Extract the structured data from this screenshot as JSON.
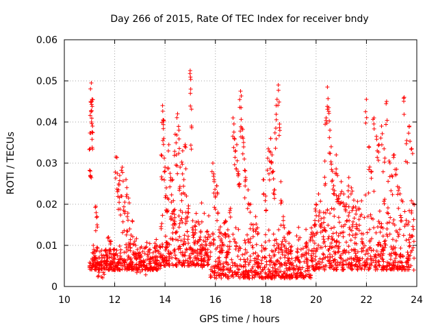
{
  "chart_data": {
    "type": "scatter",
    "title": "Day 266 of 2015, Rate Of TEC Index for receiver bndy",
    "xlabel": "GPS time / hours",
    "ylabel": "ROTI / TECUs",
    "xlim": [
      10,
      24
    ],
    "ylim": [
      0,
      0.06
    ],
    "x_ticks": [
      "10",
      "12",
      "14",
      "16",
      "18",
      "20",
      "22",
      "24"
    ],
    "y_ticks": [
      "0",
      "0.01",
      "0.02",
      "0.03",
      "0.04",
      "0.05",
      "0.06"
    ],
    "grid": true,
    "marker": "+",
    "color": "#ff0000",
    "series": [
      {
        "name": "ROTI",
        "points": [
          [
            11.02,
            0.0335
          ],
          [
            11.03,
            0.027
          ],
          [
            11.05,
            0.045
          ],
          [
            11.06,
            0.0425
          ],
          [
            11.07,
            0.0495
          ],
          [
            11.08,
            0.04
          ],
          [
            11.1,
            0.0455
          ],
          [
            11.12,
            0.039
          ],
          [
            11.15,
            0.01
          ],
          [
            11.2,
            0.0085
          ],
          [
            11.25,
            0.0195
          ],
          [
            11.3,
            0.017
          ],
          [
            11.35,
            0.007
          ],
          [
            11.45,
            0.006
          ],
          [
            11.55,
            0.0075
          ],
          [
            11.65,
            0.009
          ],
          [
            11.75,
            0.012
          ],
          [
            11.85,
            0.011
          ],
          [
            11.95,
            0.009
          ],
          [
            12.05,
            0.0315
          ],
          [
            12.1,
            0.0275
          ],
          [
            12.15,
            0.0235
          ],
          [
            12.2,
            0.027
          ],
          [
            12.25,
            0.022
          ],
          [
            12.3,
            0.029
          ],
          [
            12.35,
            0.0185
          ],
          [
            12.4,
            0.0205
          ],
          [
            12.45,
            0.026
          ],
          [
            12.5,
            0.017
          ],
          [
            12.55,
            0.0215
          ],
          [
            12.6,
            0.014
          ],
          [
            12.65,
            0.0125
          ],
          [
            12.7,
            0.016
          ],
          [
            12.8,
            0.011
          ],
          [
            12.9,
            0.009
          ],
          [
            13.0,
            0.007
          ],
          [
            13.2,
            0.008
          ],
          [
            13.4,
            0.009
          ],
          [
            13.6,
            0.0105
          ],
          [
            13.8,
            0.0095
          ],
          [
            13.85,
            0.032
          ],
          [
            13.9,
            0.044
          ],
          [
            13.92,
            0.0405
          ],
          [
            13.95,
            0.036
          ],
          [
            14.0,
            0.029
          ],
          [
            14.05,
            0.024
          ],
          [
            14.1,
            0.0215
          ],
          [
            14.15,
            0.0345
          ],
          [
            14.2,
            0.0275
          ],
          [
            14.25,
            0.0205
          ],
          [
            14.3,
            0.026
          ],
          [
            14.35,
            0.0185
          ],
          [
            14.4,
            0.037
          ],
          [
            14.45,
            0.032
          ],
          [
            14.5,
            0.042
          ],
          [
            14.55,
            0.038
          ],
          [
            14.6,
            0.029
          ],
          [
            14.65,
            0.0225
          ],
          [
            14.7,
            0.033
          ],
          [
            14.75,
            0.026
          ],
          [
            14.8,
            0.0345
          ],
          [
            14.85,
            0.022
          ],
          [
            14.9,
            0.018
          ],
          [
            15.0,
            0.0525
          ],
          [
            15.02,
            0.048
          ],
          [
            15.05,
            0.039
          ],
          [
            15.1,
            0.016
          ],
          [
            15.2,
            0.013
          ],
          [
            15.3,
            0.011
          ],
          [
            15.4,
            0.012
          ],
          [
            15.5,
            0.0095
          ],
          [
            15.6,
            0.012
          ],
          [
            15.7,
            0.009
          ],
          [
            15.9,
            0.03
          ],
          [
            15.95,
            0.026
          ],
          [
            16.0,
            0.022
          ],
          [
            16.05,
            0.0245
          ],
          [
            16.1,
            0.018
          ],
          [
            16.2,
            0.0145
          ],
          [
            16.3,
            0.0125
          ],
          [
            16.4,
            0.016
          ],
          [
            16.5,
            0.0125
          ],
          [
            16.6,
            0.019
          ],
          [
            16.7,
            0.041
          ],
          [
            16.75,
            0.036
          ],
          [
            16.8,
            0.033
          ],
          [
            16.85,
            0.0345
          ],
          [
            16.9,
            0.028
          ],
          [
            16.95,
            0.025
          ],
          [
            17.0,
            0.0475
          ],
          [
            17.02,
            0.0435
          ],
          [
            17.05,
            0.0385
          ],
          [
            17.1,
            0.036
          ],
          [
            17.15,
            0.031
          ],
          [
            17.2,
            0.0265
          ],
          [
            17.3,
            0.0235
          ],
          [
            17.4,
            0.02
          ],
          [
            17.5,
            0.015
          ],
          [
            17.6,
            0.017
          ],
          [
            17.7,
            0.013
          ],
          [
            17.9,
            0.026
          ],
          [
            18.0,
            0.022
          ],
          [
            18.1,
            0.0335
          ],
          [
            18.15,
            0.0305
          ],
          [
            18.2,
            0.036
          ],
          [
            18.25,
            0.032
          ],
          [
            18.3,
            0.028
          ],
          [
            18.35,
            0.0235
          ],
          [
            18.4,
            0.0385
          ],
          [
            18.45,
            0.0455
          ],
          [
            18.5,
            0.049
          ],
          [
            18.55,
            0.0395
          ],
          [
            18.6,
            0.0255
          ],
          [
            18.7,
            0.017
          ],
          [
            18.8,
            0.011
          ],
          [
            18.9,
            0.009
          ],
          [
            19.0,
            0.008
          ],
          [
            19.2,
            0.007
          ],
          [
            19.4,
            0.009
          ],
          [
            19.6,
            0.0105
          ],
          [
            19.8,
            0.012
          ],
          [
            20.0,
            0.02
          ],
          [
            20.1,
            0.0225
          ],
          [
            20.2,
            0.0165
          ],
          [
            20.3,
            0.018
          ],
          [
            20.35,
            0.0305
          ],
          [
            20.4,
            0.041
          ],
          [
            20.45,
            0.0485
          ],
          [
            20.5,
            0.0435
          ],
          [
            20.55,
            0.038
          ],
          [
            20.6,
            0.034
          ],
          [
            20.65,
            0.028
          ],
          [
            20.7,
            0.0245
          ],
          [
            20.8,
            0.032
          ],
          [
            20.85,
            0.027
          ],
          [
            20.9,
            0.022
          ],
          [
            21.0,
            0.0255
          ],
          [
            21.1,
            0.0225
          ],
          [
            21.2,
            0.02
          ],
          [
            21.3,
            0.0265
          ],
          [
            21.4,
            0.024
          ],
          [
            21.5,
            0.021
          ],
          [
            21.6,
            0.0185
          ],
          [
            21.7,
            0.019
          ],
          [
            21.8,
            0.0175
          ],
          [
            22.0,
            0.0455
          ],
          [
            22.1,
            0.034
          ],
          [
            22.2,
            0.028
          ],
          [
            22.3,
            0.041
          ],
          [
            22.4,
            0.0365
          ],
          [
            22.5,
            0.0345
          ],
          [
            22.6,
            0.039
          ],
          [
            22.7,
            0.0335
          ],
          [
            22.8,
            0.045
          ],
          [
            22.9,
            0.0305
          ],
          [
            23.0,
            0.027
          ],
          [
            23.1,
            0.032
          ],
          [
            23.2,
            0.0285
          ],
          [
            23.3,
            0.024
          ],
          [
            23.4,
            0.021
          ],
          [
            23.5,
            0.046
          ],
          [
            23.6,
            0.0355
          ],
          [
            23.7,
            0.039
          ],
          [
            23.8,
            0.0335
          ]
        ],
        "dense_band": {
          "note": "dense baseline of points between 11.0 and 23.9 hours",
          "segments": [
            {
              "x": [
                11.0,
                12.0
              ],
              "y": [
                0.004,
                0.012
              ]
            },
            {
              "x": [
                12.0,
                13.8
              ],
              "y": [
                0.004,
                0.012
              ]
            },
            {
              "x": [
                13.8,
                15.8
              ],
              "y": [
                0.005,
                0.022
              ]
            },
            {
              "x": [
                15.8,
                19.8
              ],
              "y": [
                0.002,
                0.016
              ]
            },
            {
              "x": [
                19.8,
                23.9
              ],
              "y": [
                0.004,
                0.025
              ]
            }
          ]
        }
      }
    ]
  }
}
